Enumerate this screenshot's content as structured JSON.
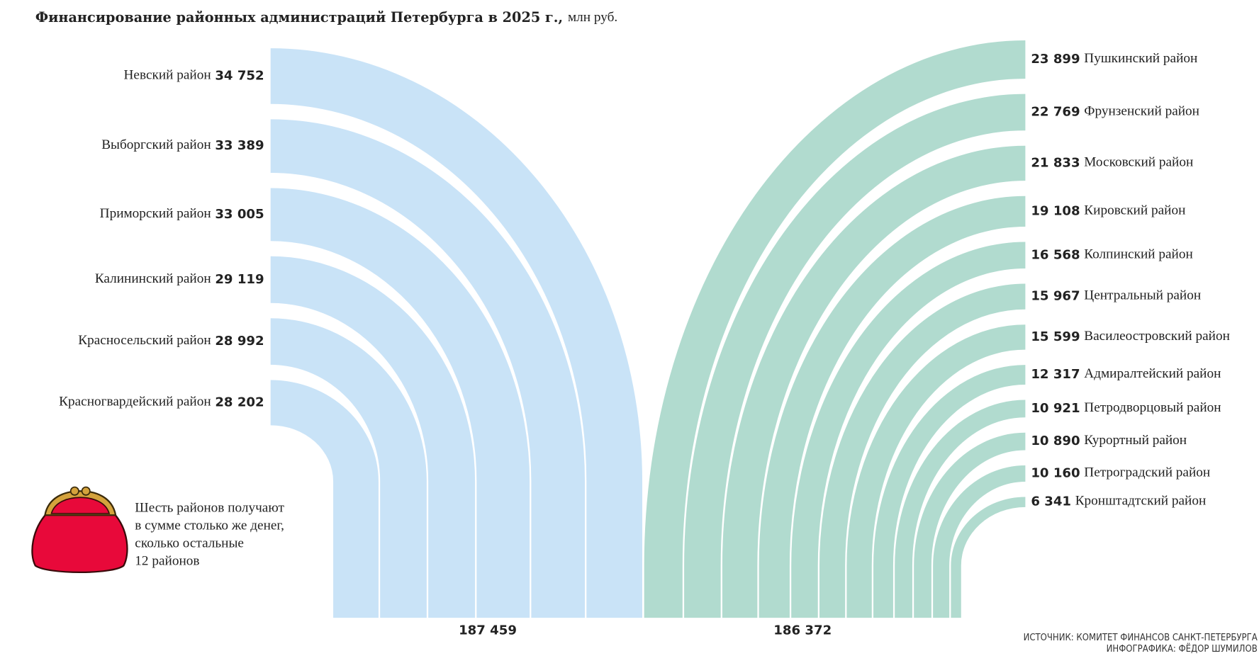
{
  "chart_data": {
    "type": "arc_bar",
    "title": "Финансирование районных администраций Петербурга в 2025 г.,",
    "unit": "млн руб.",
    "groups": [
      {
        "color": "#c9e3f7",
        "categories": [
          "Невский район",
          "Выборгский район",
          "Приморский район",
          "Калининский район",
          "Красносельский район",
          "Красногвардейский район"
        ],
        "values": [
          34752,
          33389,
          33005,
          29119,
          28992,
          28202
        ],
        "value_labels": [
          "34 752",
          "33 389",
          "33 005",
          "29 119",
          "28 992",
          "28 202"
        ],
        "total": 187459,
        "total_label": "187 459"
      },
      {
        "color": "#b1dbcf",
        "categories": [
          "Пушкинский район",
          "Фрунзенский район",
          "Московский район",
          "Кировский район",
          "Колпинский район",
          "Центральный район",
          "Василеостровский район",
          "Адмиралтейский район",
          "Петродворцовый район",
          "Курортный район",
          "Петроградский район",
          "Кронштадтский район"
        ],
        "values": [
          23899,
          22769,
          21833,
          19108,
          16568,
          15967,
          15599,
          12317,
          10921,
          10890,
          10160,
          6341
        ],
        "value_labels": [
          "23 899",
          "22 769",
          "21 833",
          "19 108",
          "16 568",
          "15 967",
          "15 599",
          "12 317",
          "10 921",
          "10 890",
          "10 160",
          "6 341"
        ],
        "total": 186372,
        "total_label": "186 372"
      }
    ],
    "note": [
      "Шесть районов получают",
      "в сумме столько же денег,",
      "сколько остальные",
      "12 районов"
    ],
    "source": "ИСТОЧНИК: КОМИТЕТ ФИНАНСОВ САНКТ-ПЕТЕРБУРГА",
    "credit": "ИНФОГРАФИКА: ФЁДОР ШУМИЛОВ"
  }
}
